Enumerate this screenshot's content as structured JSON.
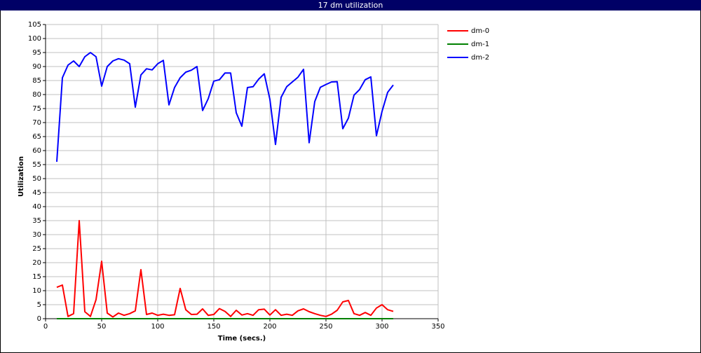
{
  "chart_data": {
    "type": "line",
    "title": "17 dm utilization",
    "x_label": "Time (secs.)",
    "y_label": "Utilization",
    "x": [
      10,
      15,
      20,
      25,
      30,
      35,
      40,
      45,
      50,
      55,
      60,
      65,
      70,
      75,
      80,
      85,
      90,
      95,
      100,
      105,
      110,
      115,
      120,
      125,
      130,
      135,
      140,
      145,
      150,
      155,
      160,
      165,
      170,
      175,
      180,
      185,
      190,
      195,
      200,
      205,
      210,
      215,
      220,
      225,
      230,
      235,
      240,
      245,
      250,
      255,
      260,
      265,
      270,
      275,
      280,
      285,
      290,
      295,
      300,
      305,
      310
    ],
    "series": [
      {
        "name": "dm-0",
        "color": "#ff0000",
        "values": [
          11.2,
          12,
          0.8,
          1.8,
          35,
          2.5,
          0.8,
          6.8,
          20.5,
          2,
          0.6,
          2,
          1.2,
          1.8,
          2.8,
          17.5,
          1.5,
          2,
          1.2,
          1.6,
          1.2,
          1.4,
          10.8,
          3.2,
          1.5,
          1.6,
          3.5,
          1.2,
          1.5,
          3.6,
          2.6,
          0.8,
          3,
          1.3,
          1.8,
          1.2,
          3.2,
          3.4,
          1.3,
          3.2,
          1.2,
          1.6,
          1.2,
          2.8,
          3.5,
          2.5,
          1.8,
          1.2,
          0.8,
          1.6,
          3,
          6,
          6.5,
          1.8,
          1.2,
          2.2,
          1.2,
          3.8,
          5,
          3.2,
          2.6
        ]
      },
      {
        "name": "dm-1",
        "color": "#008000",
        "values": [
          0,
          0,
          0,
          0,
          0,
          0,
          0,
          0,
          0,
          0,
          0,
          0,
          0,
          0,
          0,
          0,
          0,
          0,
          0,
          0,
          0,
          0,
          0,
          0,
          0,
          0,
          0,
          0,
          0,
          0,
          0,
          0,
          0,
          0,
          0,
          0,
          0,
          0,
          0,
          0,
          0,
          0,
          0,
          0,
          0,
          0,
          0,
          0,
          0,
          0,
          0,
          0,
          0,
          0,
          0,
          0,
          0,
          0,
          0,
          0,
          0
        ]
      },
      {
        "name": "dm-2",
        "color": "#0000ff",
        "values": [
          56,
          86,
          90.5,
          92,
          90,
          93.5,
          95,
          93.5,
          83,
          90,
          92,
          92.8,
          92.3,
          91,
          75.5,
          87,
          89.2,
          88.8,
          91,
          92.2,
          76.3,
          82.5,
          86,
          88,
          88.7,
          90,
          74.3,
          78.5,
          84.8,
          85.3,
          87.7,
          87.7,
          73.5,
          68.7,
          82.5,
          82.8,
          85.5,
          87.4,
          78.3,
          62.2,
          79,
          82.8,
          84.5,
          86.2,
          89,
          62.8,
          77.5,
          82.6,
          83.6,
          84.5,
          84.6,
          67.8,
          71.6,
          79.8,
          81.8,
          85.3,
          86.3,
          65.3,
          74,
          80.8,
          83.4
        ]
      }
    ],
    "xlim": [
      0,
      350
    ],
    "xticks": [
      0,
      50,
      100,
      150,
      200,
      250,
      300,
      350
    ],
    "ylim": [
      0,
      105
    ],
    "yticks": [
      0,
      5,
      10,
      15,
      20,
      25,
      30,
      35,
      40,
      45,
      50,
      55,
      60,
      65,
      70,
      75,
      80,
      85,
      90,
      95,
      100,
      105
    ],
    "grid": true,
    "legend": "right"
  }
}
